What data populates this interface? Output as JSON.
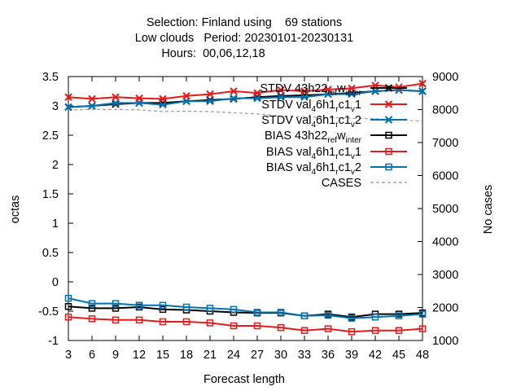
{
  "chart_data": {
    "type": "line",
    "title_lines": [
      "Selection: Finland using    69 stations",
      "Low clouds   Period: 20230101-20230131",
      "Hours:  00,06,12,18"
    ],
    "xlabel": "Forecast length",
    "ylabel": "octas",
    "y2label": "No cases",
    "x": [
      3,
      6,
      9,
      12,
      15,
      18,
      21,
      24,
      27,
      30,
      33,
      36,
      39,
      42,
      45,
      48
    ],
    "xlim": [
      3,
      48
    ],
    "ylim": [
      -1,
      3.5
    ],
    "y2lim": [
      1000,
      9000
    ],
    "x_ticks": [
      3,
      6,
      9,
      12,
      15,
      18,
      21,
      24,
      27,
      30,
      33,
      36,
      39,
      42,
      45,
      48
    ],
    "y_ticks": [
      -1,
      -0.5,
      0,
      0.5,
      1,
      1.5,
      2,
      2.5,
      3,
      3.5
    ],
    "y2_ticks": [
      1000,
      2000,
      3000,
      4000,
      5000,
      6000,
      7000,
      8000,
      9000
    ],
    "grid": false,
    "legend_position": "top-right",
    "series": [
      {
        "name": "STDV 43h22_ref_winter",
        "legend_parts": [
          "STDV 43h22",
          "ref",
          "w",
          "inter"
        ],
        "axis": "y",
        "color": "#000000",
        "marker": "x",
        "values": [
          2.98,
          3.0,
          3.03,
          3.05,
          3.05,
          3.08,
          3.1,
          3.12,
          3.15,
          3.17,
          3.18,
          3.2,
          3.22,
          3.25,
          3.27,
          3.25
        ]
      },
      {
        "name": "STDV val_46h1_rc1_v1",
        "legend_parts": [
          "STDV val",
          "4",
          "6h1",
          "r",
          "c1",
          "v",
          "1"
        ],
        "axis": "y",
        "color": "#e41a1c",
        "marker": "x",
        "values": [
          3.15,
          3.12,
          3.15,
          3.13,
          3.12,
          3.17,
          3.2,
          3.25,
          3.22,
          3.27,
          3.25,
          3.28,
          3.3,
          3.35,
          3.32,
          3.38
        ]
      },
      {
        "name": "STDV val_46h1_rc1_v2",
        "legend_parts": [
          "STDV val",
          "4",
          "6h1",
          "r",
          "c1",
          "v",
          "2"
        ],
        "axis": "y",
        "color": "#0072b2",
        "marker": "x",
        "values": [
          2.98,
          3.0,
          3.05,
          3.05,
          3.02,
          3.08,
          3.08,
          3.13,
          3.13,
          3.15,
          3.15,
          3.2,
          3.2,
          3.25,
          3.27,
          3.25
        ]
      },
      {
        "name": "BIAS 43h22_ref_winter",
        "legend_parts": [
          "BIAS 43h22",
          "ref",
          "w",
          "inter"
        ],
        "axis": "y",
        "color": "#000000",
        "marker": "square",
        "values": [
          -0.42,
          -0.45,
          -0.45,
          -0.43,
          -0.47,
          -0.48,
          -0.5,
          -0.52,
          -0.53,
          -0.53,
          -0.58,
          -0.55,
          -0.6,
          -0.55,
          -0.55,
          -0.53
        ]
      },
      {
        "name": "BIAS val_46h1_rc1_v1",
        "legend_parts": [
          "BIAS val",
          "4",
          "6h1",
          "r",
          "c1",
          "v",
          "1"
        ],
        "axis": "y",
        "color": "#e41a1c",
        "marker": "square",
        "values": [
          -0.6,
          -0.63,
          -0.65,
          -0.65,
          -0.68,
          -0.68,
          -0.7,
          -0.75,
          -0.75,
          -0.78,
          -0.83,
          -0.8,
          -0.85,
          -0.83,
          -0.83,
          -0.8
        ]
      },
      {
        "name": "BIAS val_46h1_rc1_v2",
        "legend_parts": [
          "BIAS val",
          "4",
          "6h1",
          "r",
          "c1",
          "v",
          "2"
        ],
        "axis": "y",
        "color": "#0072b2",
        "marker": "square",
        "values": [
          -0.28,
          -0.37,
          -0.37,
          -0.4,
          -0.4,
          -0.43,
          -0.45,
          -0.47,
          -0.52,
          -0.52,
          -0.58,
          -0.57,
          -0.62,
          -0.6,
          -0.58,
          -0.55
        ]
      },
      {
        "name": "CASES",
        "legend_parts": [
          "CASES"
        ],
        "axis": "y2",
        "color": "#999999",
        "marker": "none",
        "dashed": true,
        "values": [
          7980,
          8010,
          8000,
          7990,
          7940,
          7950,
          7940,
          7900,
          7870,
          7800,
          7780,
          7760,
          7740,
          7720,
          7690,
          7650
        ]
      }
    ]
  }
}
